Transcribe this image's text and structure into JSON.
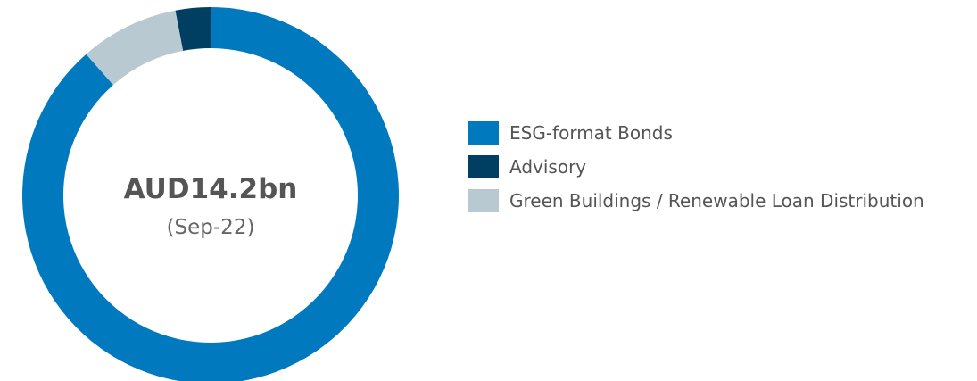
{
  "chart_data": {
    "type": "pie",
    "title": "",
    "center_value": "AUD14.2bn",
    "center_subtitle": "(Sep-22)",
    "categories": [
      "ESG-format Bonds",
      "Advisory",
      "Green Buildings / Renewable Loan Distribution"
    ],
    "values": [
      88.5,
      3.0,
      8.5
    ],
    "colors": [
      "#0079BF",
      "#003F62",
      "#B9C9D1"
    ],
    "start_order": [
      1,
      2,
      0
    ],
    "legend_position": "right"
  }
}
